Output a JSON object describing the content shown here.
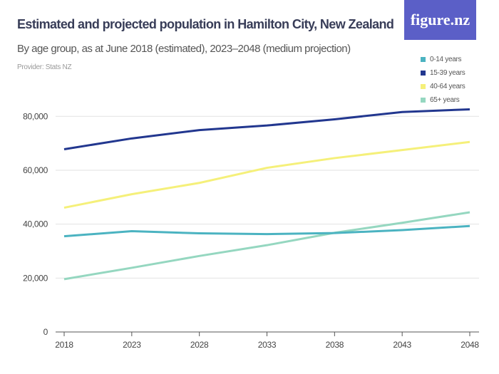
{
  "header": {
    "title": "Estimated and projected population in Hamilton City, New Zealand",
    "subtitle": "By age group, as at June 2018 (estimated), 2023–2048 (medium projection)",
    "provider": "Provider: Stats NZ",
    "logo_text": "figure.nz",
    "logo_color": "#5b5fc7"
  },
  "chart_data": {
    "type": "line",
    "title": "Estimated and projected population in Hamilton City, New Zealand",
    "subtitle": "By age group, as at June 2018 (estimated), 2023–2048 (medium projection)",
    "x": [
      "2018",
      "2023",
      "2028",
      "2033",
      "2038",
      "2043",
      "2048"
    ],
    "ylim": [
      0,
      80000
    ],
    "yticks": [
      0,
      20000,
      40000,
      60000,
      80000
    ],
    "ytick_labels": [
      "0",
      "20,000",
      "40,000",
      "60,000",
      "80,000"
    ],
    "grid": true,
    "legend_position": "top-right",
    "series": [
      {
        "name": "0-14 years",
        "color": "#4bb3c1",
        "values": [
          35500,
          37400,
          36600,
          36300,
          36700,
          37800,
          39300
        ]
      },
      {
        "name": "15-39 years",
        "color": "#22378f",
        "values": [
          67800,
          71800,
          74900,
          76600,
          78900,
          81600,
          82600
        ]
      },
      {
        "name": "40-64 years",
        "color": "#f5f07a",
        "values": [
          46100,
          51100,
          55300,
          60900,
          64500,
          67500,
          70500
        ]
      },
      {
        "name": "65+ years",
        "color": "#95d7c0",
        "values": [
          19600,
          23800,
          28200,
          32200,
          36800,
          40500,
          44400
        ]
      }
    ]
  }
}
